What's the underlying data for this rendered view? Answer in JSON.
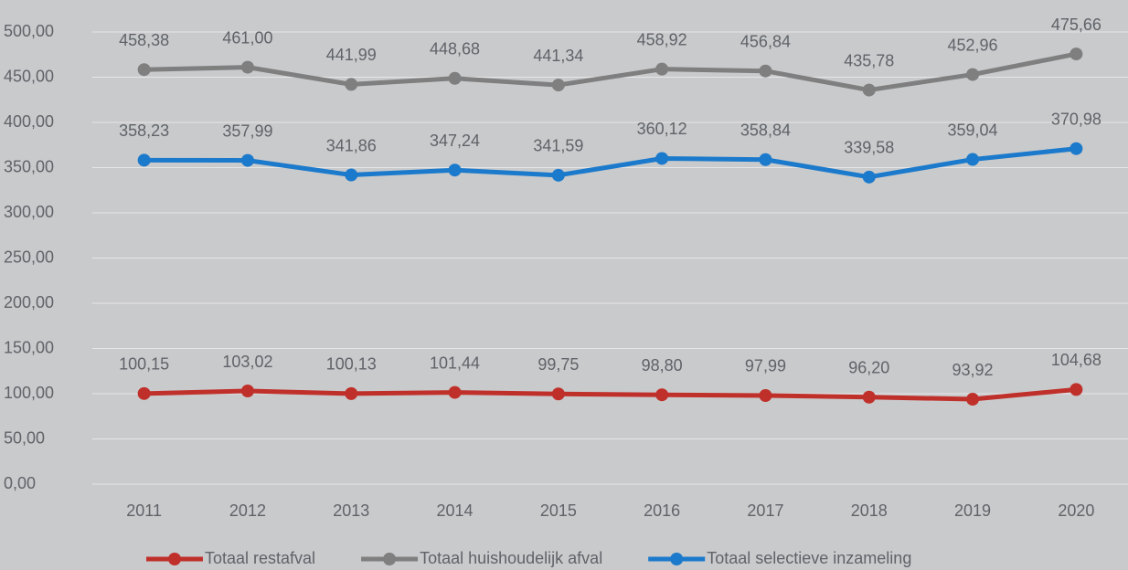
{
  "chart_data": {
    "type": "line",
    "categories": [
      "2011",
      "2012",
      "2013",
      "2014",
      "2015",
      "2016",
      "2017",
      "2018",
      "2019",
      "2020"
    ],
    "series": [
      {
        "name": "Totaal restafval",
        "color": "#c0302b",
        "values": [
          100.15,
          103.02,
          100.13,
          101.44,
          99.75,
          98.8,
          97.99,
          96.2,
          93.92,
          104.68
        ],
        "value_labels": [
          "100,15",
          "103,02",
          "100,13",
          "101,44",
          "99,75",
          "98,80",
          "97,99",
          "96,20",
          "93,92",
          "104,68"
        ]
      },
      {
        "name": "Totaal huishoudelijk afval",
        "color": "#7f7f7f",
        "values": [
          458.38,
          461.0,
          441.99,
          448.68,
          441.34,
          458.92,
          456.84,
          435.78,
          452.96,
          475.66
        ],
        "value_labels": [
          "458,38",
          "461,00",
          "441,99",
          "448,68",
          "441,34",
          "458,92",
          "456,84",
          "435,78",
          "452,96",
          "475,66"
        ]
      },
      {
        "name": "Totaal selectieve inzameling",
        "color": "#1b7acb",
        "values": [
          358.23,
          357.99,
          341.86,
          347.24,
          341.59,
          360.12,
          358.84,
          339.58,
          359.04,
          370.98
        ],
        "value_labels": [
          "358,23",
          "357,99",
          "341,86",
          "347,24",
          "341,59",
          "360,12",
          "358,84",
          "339,58",
          "359,04",
          "370,98"
        ]
      }
    ],
    "ylim": [
      0,
      500
    ],
    "yticks": [
      {
        "value": 0,
        "label": "0,00"
      },
      {
        "value": 50,
        "label": "50,00"
      },
      {
        "value": 100,
        "label": "100,00"
      },
      {
        "value": 150,
        "label": "150,00"
      },
      {
        "value": 200,
        "label": "200,00"
      },
      {
        "value": 250,
        "label": "250,00"
      },
      {
        "value": 300,
        "label": "300,00"
      },
      {
        "value": 350,
        "label": "350,00"
      },
      {
        "value": 400,
        "label": "400,00"
      },
      {
        "value": 450,
        "label": "450,00"
      },
      {
        "value": 500,
        "label": "500,00"
      }
    ],
    "grid": true,
    "legend": "bottom"
  }
}
